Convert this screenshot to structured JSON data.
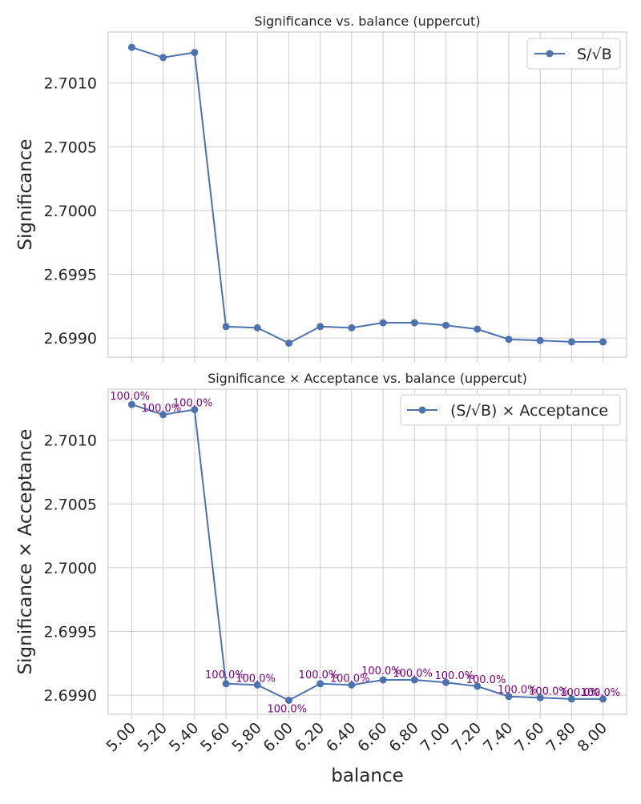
{
  "chart_data": [
    {
      "type": "line",
      "title": "Significance vs. balance (uppercut)",
      "xlabel": "",
      "ylabel": "Significance",
      "x": [
        5.0,
        5.2,
        5.4,
        5.6,
        5.8,
        6.0,
        6.2,
        6.4,
        6.6,
        6.8,
        7.0,
        7.2,
        7.4,
        7.6,
        7.8,
        8.0
      ],
      "xtick_labels": [],
      "yticks": [
        "2.6990",
        "2.6995",
        "2.7000",
        "2.7005",
        "2.7010"
      ],
      "ylim": [
        2.69885,
        2.7014
      ],
      "grid": true,
      "legend_position": "top-right",
      "series": [
        {
          "name": "S/√B",
          "color": "#4c72b0",
          "values": [
            2.70128,
            2.7012,
            2.70124,
            2.69909,
            2.69908,
            2.69896,
            2.69909,
            2.69908,
            2.69912,
            2.69912,
            2.6991,
            2.69907,
            2.69899,
            2.69898,
            2.69897,
            2.69897
          ]
        }
      ]
    },
    {
      "type": "line",
      "title": "Significance × Acceptance vs. balance (uppercut)",
      "xlabel": "balance",
      "ylabel": "Significance × Acceptance",
      "x": [
        5.0,
        5.2,
        5.4,
        5.6,
        5.8,
        6.0,
        6.2,
        6.4,
        6.6,
        6.8,
        7.0,
        7.2,
        7.4,
        7.6,
        7.8,
        8.0
      ],
      "xtick_labels": [
        "5.00",
        "5.20",
        "5.40",
        "5.60",
        "5.80",
        "6.00",
        "6.20",
        "6.40",
        "6.60",
        "6.80",
        "7.00",
        "7.20",
        "7.40",
        "7.60",
        "7.80",
        "8.00"
      ],
      "yticks": [
        "2.6990",
        "2.6995",
        "2.7000",
        "2.7005",
        "2.7010"
      ],
      "ylim": [
        2.69885,
        2.7014
      ],
      "grid": true,
      "legend_position": "top-right",
      "annotation_color": "#800080",
      "annotations": [
        "100.0%",
        "100.0%",
        "100.0%",
        "100.0%",
        "100.0%",
        "100.0%",
        "100.0%",
        "100.0%",
        "100.0%",
        "100.0%",
        "100.0%",
        "100.0%",
        "100.0%",
        "100.0%",
        "100.0%",
        "100.0%"
      ],
      "series": [
        {
          "name": "(S/√B) × Acceptance",
          "color": "#4c72b0",
          "values": [
            2.70128,
            2.7012,
            2.70124,
            2.69909,
            2.69908,
            2.69896,
            2.69909,
            2.69908,
            2.69912,
            2.69912,
            2.6991,
            2.69907,
            2.69899,
            2.69898,
            2.69897,
            2.69897
          ]
        }
      ]
    }
  ]
}
